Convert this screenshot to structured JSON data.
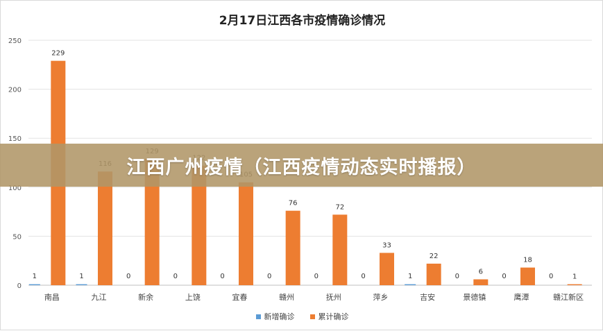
{
  "banner": {
    "text": "江西广州疫情（江西疫情动态实时播报）"
  },
  "chart_data": {
    "type": "bar",
    "title": "2月17日江西各市疫情确诊情况",
    "categories": [
      "南昌",
      "九江",
      "新余",
      "上饶",
      "宜春",
      "赣州",
      "抚州",
      "萍乡",
      "吉安",
      "景德镇",
      "鹰潭",
      "赣江新区"
    ],
    "series": [
      {
        "name": "新增确诊",
        "color": "#5b9bd5",
        "values": [
          1,
          1,
          0,
          0,
          0,
          0,
          0,
          0,
          1,
          0,
          0,
          0
        ]
      },
      {
        "name": "累计确诊",
        "color": "#ed7d31",
        "values": [
          229,
          116,
          129,
          122,
          105,
          76,
          72,
          33,
          22,
          6,
          18,
          1
        ]
      }
    ],
    "yticks": [
      0,
      50,
      100,
      150,
      200,
      250
    ],
    "ylim": [
      0,
      250
    ],
    "grid": true,
    "legend": "bottom"
  }
}
